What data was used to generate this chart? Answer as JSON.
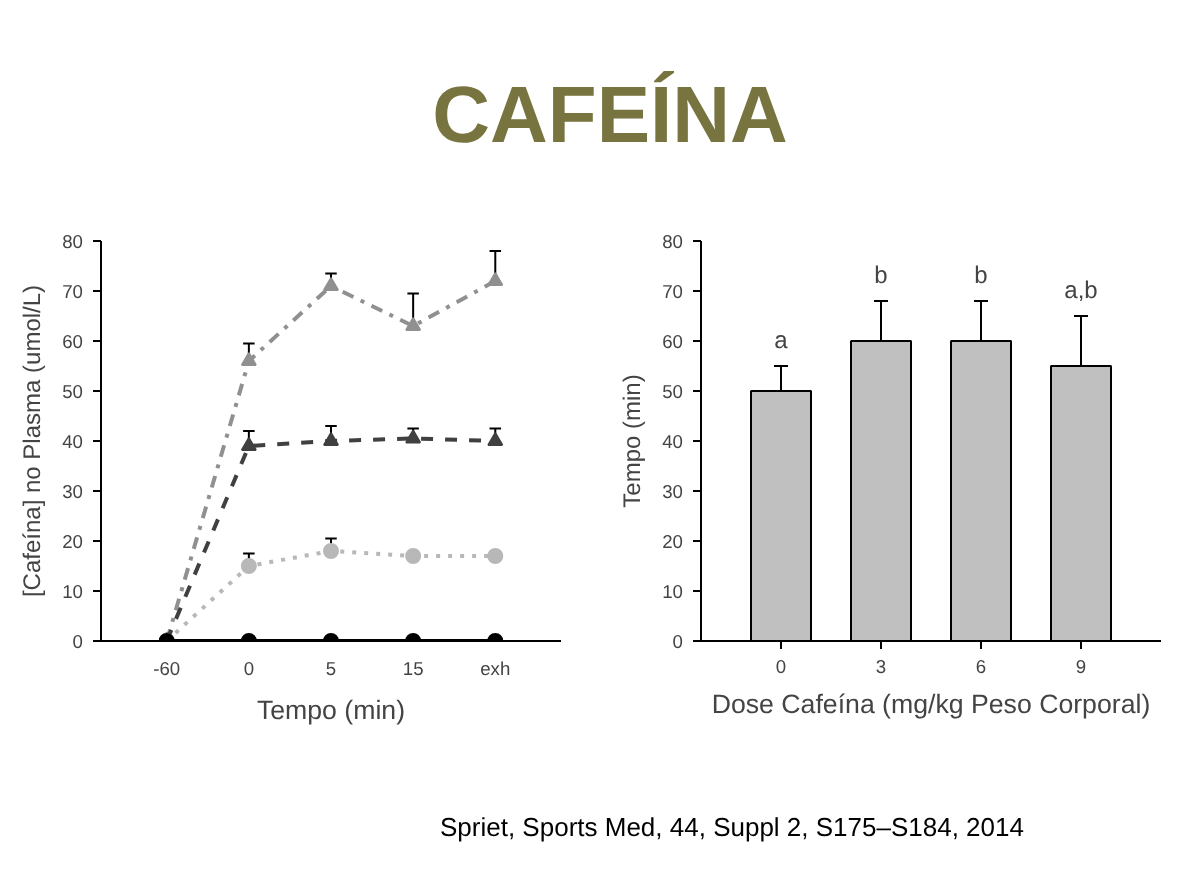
{
  "chart_data": [
    {
      "type": "line",
      "title": "CAFEÍNA",
      "xlabel": "Tempo (min)",
      "ylabel": "[Cafeína] no Plasma (umol/L)",
      "categories": [
        "-60",
        "0",
        "5",
        "15",
        "exh"
      ],
      "ylim": [
        0,
        80
      ],
      "yticks": [
        0,
        10,
        20,
        30,
        40,
        50,
        60,
        70,
        80
      ],
      "grid": false,
      "series": [
        {
          "color": "#909090",
          "marker": "triangle",
          "line_style": "dashdot",
          "values": [
            0,
            56,
            71,
            63,
            72
          ],
          "errors": [
            null,
            [
              56,
              59.5
            ],
            [
              71,
              73.5
            ],
            [
              63,
              69.5
            ],
            [
              72,
              78
            ]
          ]
        },
        {
          "color": "#404040",
          "marker": "triangle",
          "line_style": "dashed",
          "values": [
            0,
            39,
            40,
            40.5,
            40
          ],
          "errors": [
            null,
            [
              39,
              42
            ],
            [
              40,
              43
            ],
            [
              40.5,
              42.5
            ],
            [
              40,
              42.5
            ]
          ]
        },
        {
          "color": "#b8b8b8",
          "marker": "circle",
          "line_style": "dotted",
          "values": [
            0,
            15,
            18,
            17,
            17
          ],
          "errors": [
            null,
            [
              15,
              17.5
            ],
            [
              18,
              20.5
            ],
            null,
            null
          ]
        },
        {
          "color": "#000000",
          "marker": "circle",
          "line_style": "solid",
          "values": [
            0,
            0,
            0,
            0,
            0
          ]
        }
      ]
    },
    {
      "type": "bar",
      "xlabel": "Dose Cafeína (mg/kg Peso Corporal)",
      "ylabel": "Tempo (min)",
      "categories": [
        "0",
        "3",
        "6",
        "9"
      ],
      "values": [
        50,
        60,
        60,
        55
      ],
      "color": "#c0c0c0",
      "errors": [
        [
          50,
          55
        ],
        [
          60,
          68
        ],
        [
          60,
          68
        ],
        [
          55,
          65
        ]
      ],
      "ylim": [
        0,
        80
      ],
      "yticks": [
        0,
        10,
        20,
        30,
        40,
        50,
        60,
        70,
        80
      ],
      "grid": false,
      "annotations": [
        {
          "text": "a",
          "x": "0",
          "y": 55
        },
        {
          "text": "b",
          "x": "3",
          "y": 68
        },
        {
          "text": "b",
          "x": "6",
          "y": 68
        },
        {
          "text": "a,b",
          "x": "9",
          "y": 65
        },
        "Spriet, Sports Med, 44, Suppl 2, S175–S184, 2014"
      ]
    }
  ]
}
